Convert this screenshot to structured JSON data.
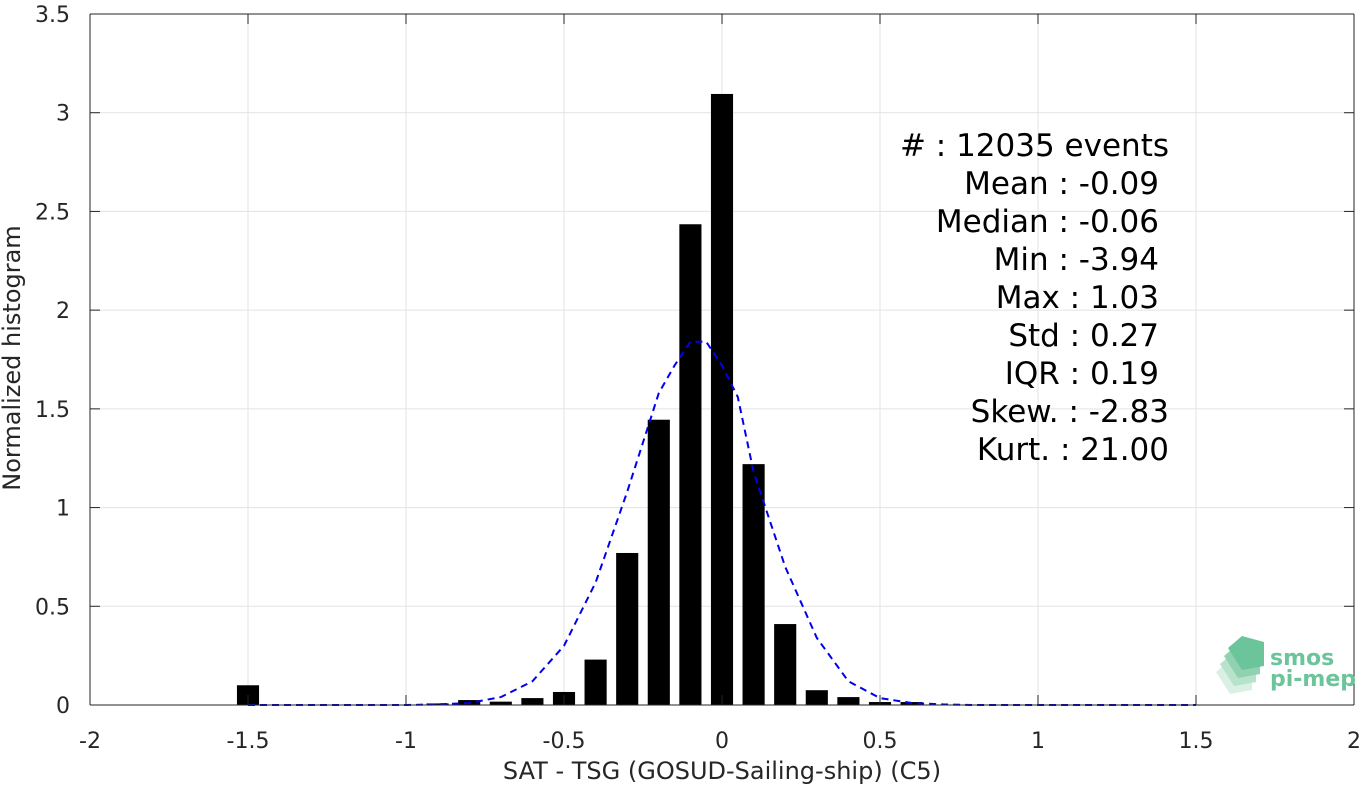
{
  "chart_data": {
    "type": "bar",
    "xlabel": "SAT - TSG (GOSUD-Sailing-ship) (C5)",
    "ylabel": "Normalized histogram",
    "xlim": [
      -2,
      2
    ],
    "ylim": [
      0,
      3.5
    ],
    "xticks": [
      -2,
      -1.5,
      -1,
      -0.5,
      0,
      0.5,
      1,
      1.5,
      2
    ],
    "xtick_labels": [
      "-2",
      "-1.5",
      "-1",
      "-0.5",
      "0",
      "0.5",
      "1",
      "1.5",
      "2"
    ],
    "yticks": [
      0,
      0.5,
      1,
      1.5,
      2,
      2.5,
      3,
      3.5
    ],
    "ytick_labels": [
      "0",
      "0.5",
      "1",
      "1.5",
      "2",
      "2.5",
      "3",
      "3.5"
    ],
    "grid": true,
    "bin_width": 0.1,
    "bar_fraction": 0.7,
    "bar_color": "#000000",
    "histogram": {
      "x": [
        -1.5,
        -1.0,
        -0.9,
        -0.8,
        -0.7,
        -0.6,
        -0.5,
        -0.4,
        -0.3,
        -0.2,
        -0.1,
        0.0,
        0.1,
        0.2,
        0.3,
        0.4,
        0.5,
        0.6
      ],
      "values": [
        0.1,
        0.002,
        0.008,
        0.025,
        0.017,
        0.035,
        0.066,
        0.23,
        0.77,
        1.445,
        2.435,
        3.095,
        1.22,
        0.41,
        0.075,
        0.04,
        0.015,
        0.015
      ]
    },
    "fit": {
      "style": "dashed",
      "color": "#0000ee",
      "x": [
        -1.5,
        -1.4,
        -1.3,
        -1.2,
        -1.1,
        -1.0,
        -0.9,
        -0.8,
        -0.7,
        -0.6,
        -0.5,
        -0.4,
        -0.3,
        -0.2,
        -0.15,
        -0.1,
        -0.05,
        0.0,
        0.05,
        0.1,
        0.2,
        0.3,
        0.4,
        0.5,
        0.6,
        0.7,
        0.8,
        0.9,
        1.0,
        1.1,
        1.2,
        1.3,
        1.4,
        1.5
      ],
      "y": [
        0.0,
        0.0,
        0.0,
        0.0,
        0.0,
        0.0,
        0.003,
        0.01,
        0.04,
        0.12,
        0.3,
        0.62,
        1.08,
        1.58,
        1.72,
        1.84,
        1.84,
        1.72,
        1.56,
        1.18,
        0.7,
        0.34,
        0.12,
        0.035,
        0.01,
        0.003,
        0.0,
        0.0,
        0.0,
        0.0,
        0.0,
        0.0,
        0.0,
        0.0
      ]
    },
    "annotations": [
      "#  : 12035 events",
      "Mean : -0.09",
      "Median : -0.06",
      "Min : -3.94",
      "Max : 1.03",
      "Std : 0.27",
      "IQR : 0.19",
      "Skew. : -2.83",
      "Kurt. : 21.00"
    ]
  },
  "logo": {
    "line1": "smos",
    "line2": "pi-mep",
    "color": "#6cc49a"
  }
}
